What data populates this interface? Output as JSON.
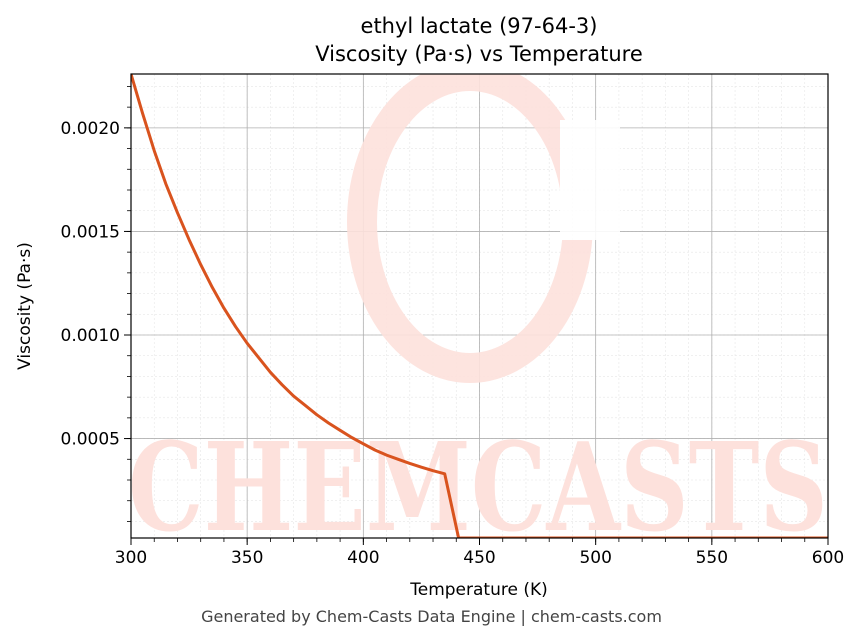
{
  "watermark": "CHEMCASTS",
  "colors": {
    "line": "#d9531e",
    "watermark": "#fde1dc"
  },
  "footer": "Generated by Chem-Casts Data Engine | chem-casts.com",
  "chart_data": {
    "type": "line",
    "title": "ethyl lactate (97-64-3)",
    "subtitle": "Viscosity (Pa·s) vs Temperature",
    "xlabel": "Temperature (K)",
    "ylabel": "Viscosity (Pa·s)",
    "xlim": [
      300,
      600
    ],
    "ylim": [
      2e-05,
      0.00226
    ],
    "xticks": [
      300,
      350,
      400,
      450,
      500,
      550,
      600
    ],
    "yticks": [
      0.0005,
      0.001,
      0.0015,
      0.002
    ],
    "ytick_labels": [
      "0.0005",
      "0.0010",
      "0.0015",
      "0.0020"
    ],
    "grid": true,
    "series": [
      {
        "x": [
          300,
          305,
          310,
          315,
          320,
          325,
          330,
          335,
          340,
          345,
          350,
          355,
          360,
          365,
          370,
          375,
          380,
          385,
          390,
          395,
          400,
          405,
          410,
          415,
          420,
          425,
          430,
          435,
          441,
          450,
          500,
          550,
          600
        ],
        "values": [
          0.00226,
          0.00207,
          0.00189,
          0.00173,
          0.00159,
          0.00146,
          0.00134,
          0.00123,
          0.00113,
          0.00104,
          0.00096,
          0.00089,
          0.00082,
          0.00076,
          0.000705,
          0.00066,
          0.000615,
          0.000575,
          0.00054,
          0.000505,
          0.000475,
          0.000445,
          0.00042,
          0.0004,
          0.00038,
          0.000362,
          0.000345,
          0.00033,
          2e-05,
          2e-05,
          2e-05,
          2e-05,
          2e-05
        ]
      }
    ]
  }
}
